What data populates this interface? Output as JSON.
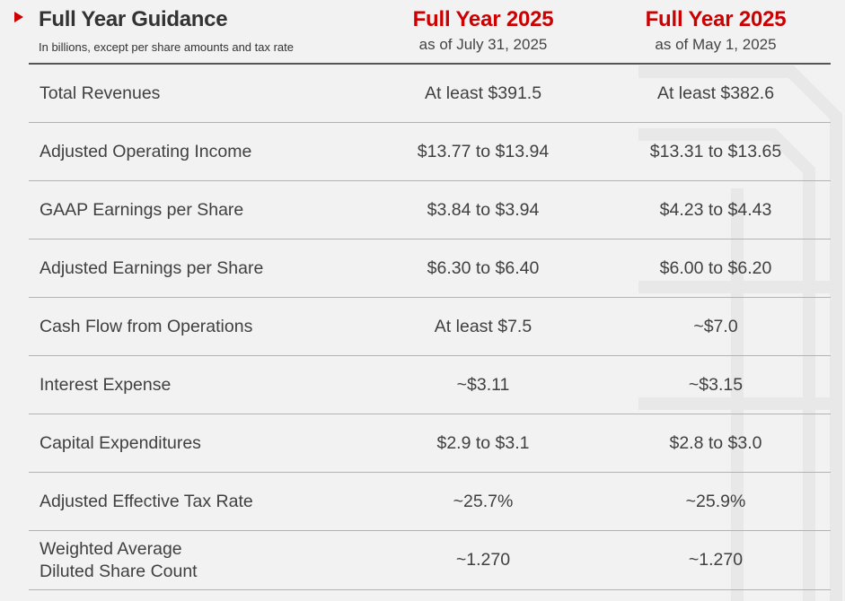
{
  "header": {
    "title": "Full Year Guidance",
    "subtitle": "In billions, except per share amounts and tax rate",
    "columns": [
      {
        "year": "Full Year 2025",
        "as_of": "as of July 31, 2025"
      },
      {
        "year": "Full Year 2025",
        "as_of": "as of May 1, 2025"
      }
    ]
  },
  "rows": [
    {
      "label": "Total Revenues",
      "jul": "At least $391.5",
      "may": "At least $382.6"
    },
    {
      "label": "Adjusted Operating Income",
      "jul": "$13.77 to $13.94",
      "may": "$13.31 to $13.65"
    },
    {
      "label": "GAAP Earnings per Share",
      "jul": "$3.84 to $3.94",
      "may": "$4.23 to $4.43"
    },
    {
      "label": "Adjusted Earnings per Share",
      "jul": "$6.30 to $6.40",
      "may": "$6.00 to $6.20"
    },
    {
      "label": "Cash Flow from Operations",
      "jul": "At least $7.5",
      "may": "~$7.0"
    },
    {
      "label": "Interest Expense",
      "jul": "~$3.11",
      "may": "~$3.15"
    },
    {
      "label": "Capital Expenditures",
      "jul": "$2.9 to $3.1",
      "may": "$2.8 to $3.0"
    },
    {
      "label": "Adjusted Effective Tax Rate",
      "jul": "~25.7%",
      "may": "~25.9%"
    },
    {
      "label_line1": "Weighted Average",
      "label_line2": "Diluted Share Count",
      "jul": "~1.270",
      "may": "~1.270"
    }
  ],
  "colors": {
    "accent": "#cc0000",
    "text": "#404040",
    "background": "#f2f2f2",
    "rule": "#b3b3b3"
  }
}
